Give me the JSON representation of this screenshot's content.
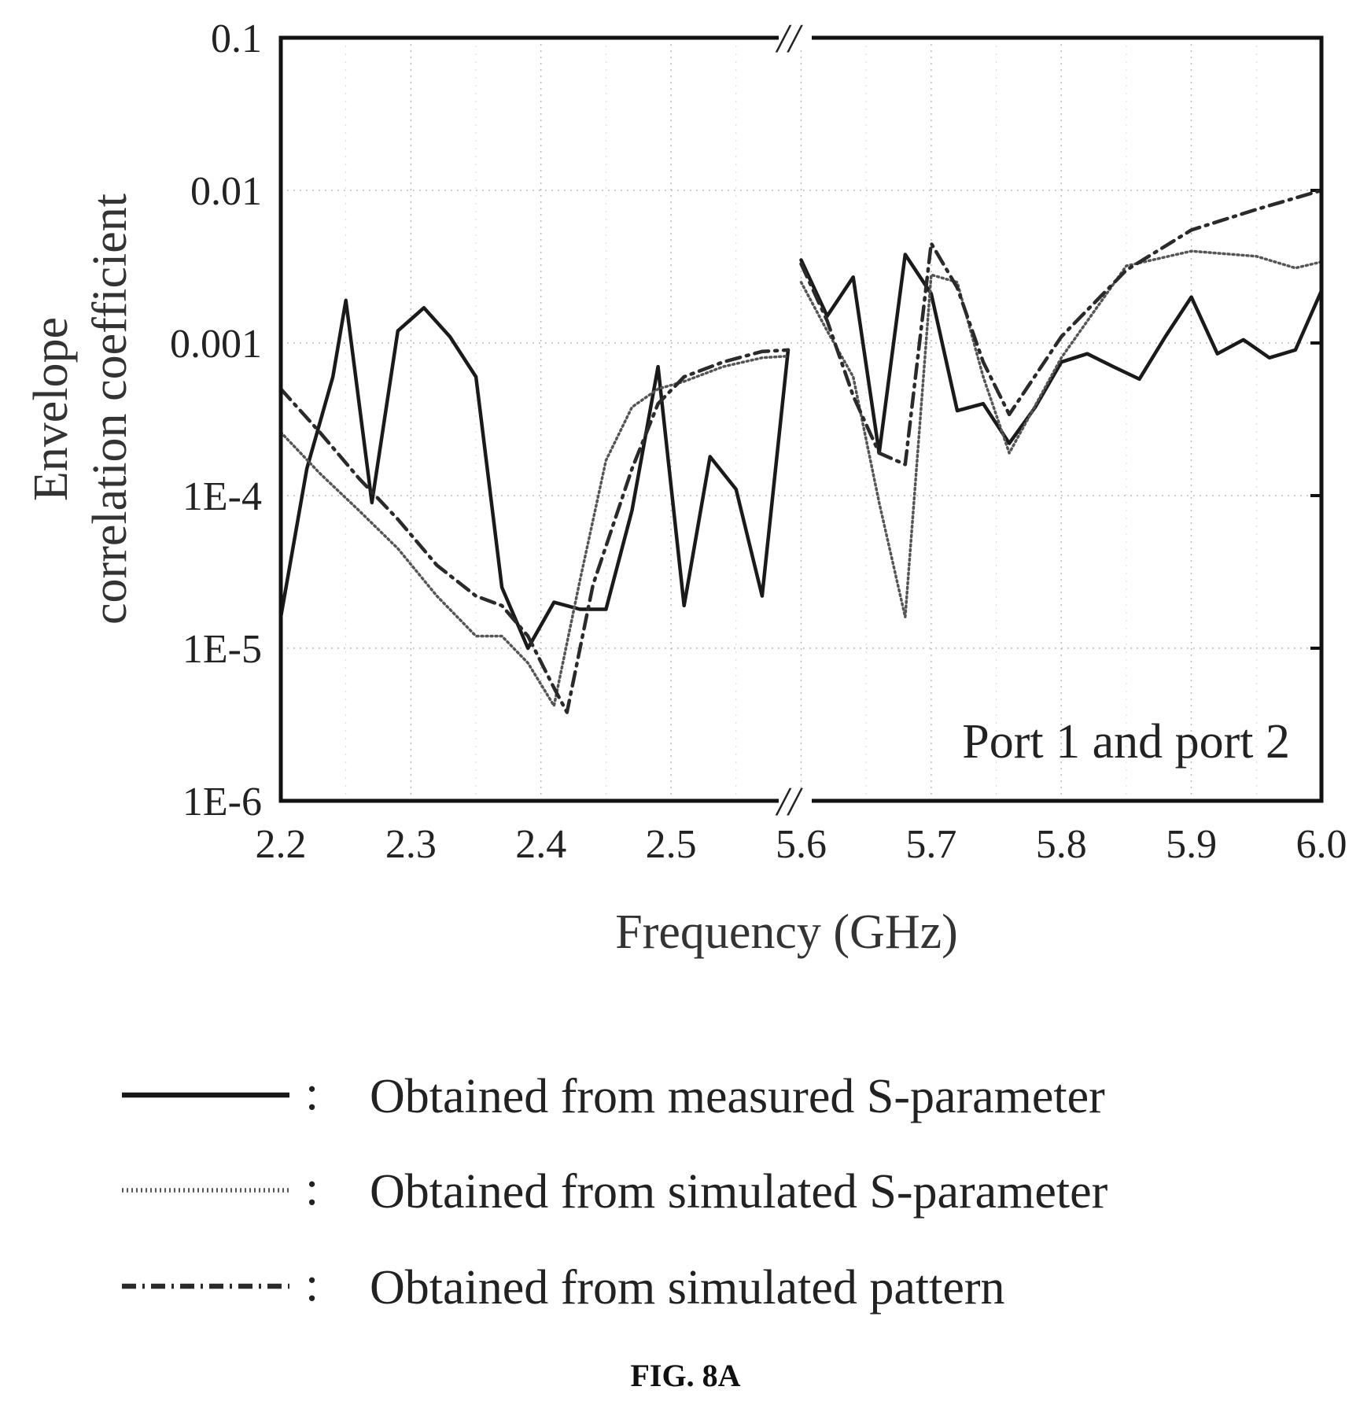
{
  "chart_data": {
    "type": "line",
    "xlabel": "Frequency (GHz)",
    "ylabel_lines": [
      "Envelope",
      "correlation coefficient"
    ],
    "yscale": "log",
    "ylim": [
      1e-06,
      0.1
    ],
    "x_segments": [
      {
        "range": [
          2.2,
          2.6
        ],
        "ticks": [
          "2.2",
          "2.3",
          "2.4",
          "2.5"
        ]
      },
      {
        "range": [
          5.6,
          6.0
        ],
        "ticks": [
          "5.6",
          "5.7",
          "5.8",
          "5.9",
          "6.0"
        ]
      }
    ],
    "axis_break": "//",
    "y_ticks": [
      {
        "value": 0.1,
        "label": "0.1"
      },
      {
        "value": 0.01,
        "label": "0.01"
      },
      {
        "value": 0.001,
        "label": "0.001"
      },
      {
        "value": 0.0001,
        "label": "1E-4"
      },
      {
        "value": 1e-05,
        "label": "1E-5"
      },
      {
        "value": 1e-06,
        "label": "1E-6"
      }
    ],
    "grid": true,
    "annotation": "Port 1 and port 2",
    "legend_placement": "bottom",
    "series": [
      {
        "name": "Obtained from measured S-parameter",
        "style": "solid",
        "segments": [
          {
            "x": [
              2.2,
              2.22,
              2.24,
              2.25,
              2.27,
              2.29,
              2.31,
              2.33,
              2.35,
              2.37,
              2.39,
              2.41,
              2.43,
              2.45,
              2.47,
              2.49,
              2.51,
              2.53,
              2.55,
              2.57,
              2.59
            ],
            "y": [
              1.6e-05,
              0.00015,
              0.0006,
              0.0019,
              9e-05,
              0.0012,
              0.0017,
              0.0011,
              0.0006,
              2.5e-05,
              1e-05,
              2e-05,
              1.8e-05,
              1.8e-05,
              8e-05,
              0.0007,
              1.9e-05,
              0.00018,
              0.00011,
              2.2e-05,
              0.0009
            ]
          },
          {
            "x": [
              5.6,
              5.62,
              5.64,
              5.66,
              5.68,
              5.7,
              5.72,
              5.74,
              5.76,
              5.78,
              5.8,
              5.82,
              5.84,
              5.86,
              5.88,
              5.9,
              5.92,
              5.94,
              5.96,
              5.98,
              6.0
            ],
            "y": [
              0.0035,
              0.0015,
              0.0027,
              0.00019,
              0.0038,
              0.0021,
              0.00036,
              0.0004,
              0.00022,
              0.00038,
              0.00075,
              0.00085,
              0.0007,
              0.00058,
              0.0011,
              0.002,
              0.00085,
              0.00105,
              0.0008,
              0.0009,
              0.0022
            ]
          }
        ]
      },
      {
        "name": "Obtained from simulated S-parameter",
        "style": "dotted",
        "segments": [
          {
            "x": [
              2.2,
              2.23,
              2.26,
              2.29,
              2.32,
              2.35,
              2.37,
              2.39,
              2.41,
              2.43,
              2.45,
              2.47,
              2.49,
              2.51,
              2.54,
              2.57,
              2.59
            ],
            "y": [
              0.00026,
              0.00014,
              8e-05,
              4.5e-05,
              2.2e-05,
              1.2e-05,
              1.2e-05,
              8e-06,
              4.2e-06,
              2.8e-05,
              0.00017,
              0.00038,
              0.0005,
              0.00056,
              0.0007,
              0.0008,
              0.00082
            ]
          },
          {
            "x": [
              5.6,
              5.62,
              5.64,
              5.66,
              5.68,
              5.7,
              5.72,
              5.74,
              5.76,
              5.8,
              5.85,
              5.9,
              5.95,
              5.98,
              6.0
            ],
            "y": [
              0.0025,
              0.0012,
              0.0006,
              9e-05,
              1.6e-05,
              0.0028,
              0.0025,
              0.0006,
              0.00019,
              0.0008,
              0.0032,
              0.004,
              0.0037,
              0.0031,
              0.0034
            ]
          }
        ]
      },
      {
        "name": "Obtained from simulated pattern",
        "style": "dash-dot",
        "segments": [
          {
            "x": [
              2.2,
              2.23,
              2.26,
              2.29,
              2.32,
              2.35,
              2.37,
              2.39,
              2.41,
              2.42,
              2.44,
              2.47,
              2.49,
              2.51,
              2.54,
              2.57,
              2.59
            ],
            "y": [
              0.0005,
              0.00026,
              0.00013,
              7e-05,
              3.5e-05,
              2.2e-05,
              1.9e-05,
              1.2e-05,
              5.5e-06,
              3.8e-06,
              2.6e-05,
              0.00015,
              0.0004,
              0.0006,
              0.00075,
              0.00088,
              0.0009
            ]
          },
          {
            "x": [
              5.6,
              5.62,
              5.64,
              5.66,
              5.68,
              5.7,
              5.72,
              5.74,
              5.76,
              5.8,
              5.85,
              5.9,
              5.95,
              6.0
            ],
            "y": [
              0.0033,
              0.0014,
              0.00045,
              0.00019,
              0.00016,
              0.0045,
              0.0023,
              0.00075,
              0.00034,
              0.0011,
              0.003,
              0.0055,
              0.0075,
              0.01
            ]
          }
        ]
      }
    ]
  },
  "caption": "FIG. 8A"
}
